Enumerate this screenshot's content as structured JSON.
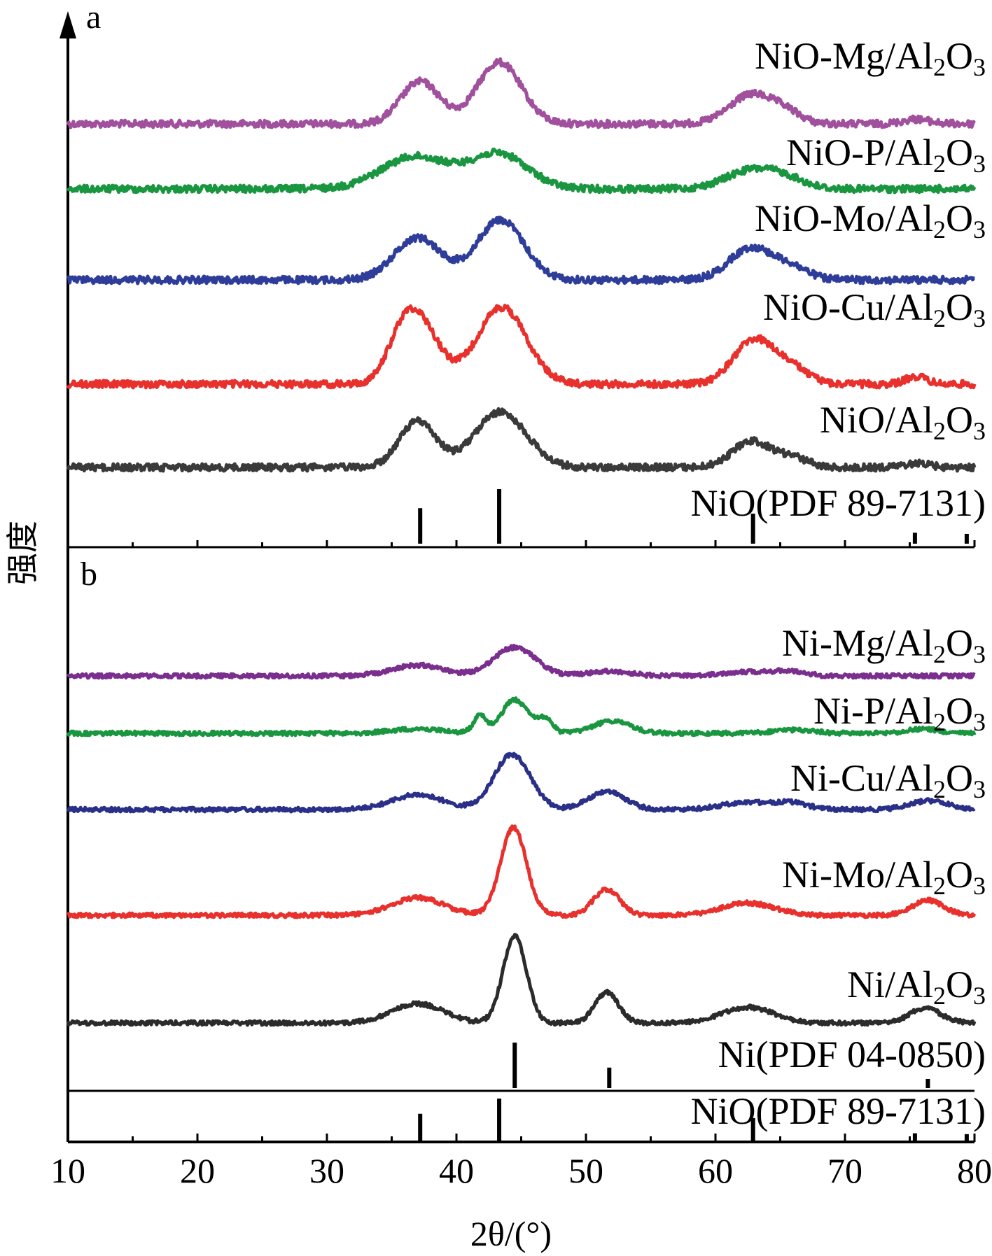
{
  "chart_data": {
    "type": "line",
    "title": "",
    "xlabel": "2θ/(°)",
    "ylabel": "强度",
    "xlim": [
      10,
      80
    ],
    "xticks": [
      10,
      20,
      30,
      40,
      50,
      60,
      70,
      80
    ],
    "grid": false,
    "legend": "labels placed beside each curve (right side)",
    "panels": [
      {
        "id": "a",
        "series": [
          {
            "name": "NiO-Mg/Al2O3",
            "label_main": "NiO-Mg/Al",
            "label_sub1": "2",
            "label_mid": "O",
            "label_sub2": "3",
            "color": "#a0509c",
            "peaks": [
              [
                37.2,
                0.55,
                1.5
              ],
              [
                43.3,
                0.8,
                1.7
              ],
              [
                62.8,
                0.38,
                1.7
              ],
              [
                65.5,
                0.12,
                1.2
              ],
              [
                75.5,
                0.06,
                1.0
              ]
            ]
          },
          {
            "name": "NiO-P/Al2O3",
            "label_main": "NiO-P/Al",
            "label_sub1": "2",
            "label_mid": "O",
            "label_sub2": "3",
            "color": "#1a9640",
            "peaks": [
              [
                36.8,
                0.42,
                2.6
              ],
              [
                43.3,
                0.45,
                2.2
              ],
              [
                62.8,
                0.24,
                2.0
              ],
              [
                65.5,
                0.1,
                1.5
              ]
            ]
          },
          {
            "name": "NiO-Mo/Al2O3",
            "label_main": "NiO-Mo/Al",
            "label_sub1": "2",
            "label_mid": "O",
            "label_sub2": "3",
            "color": "#2f3d9a",
            "peaks": [
              [
                37.0,
                0.55,
                1.8
              ],
              [
                43.4,
                0.78,
                1.8
              ],
              [
                62.8,
                0.42,
                1.7
              ],
              [
                66.0,
                0.14,
                1.3
              ]
            ]
          },
          {
            "name": "NiO-Cu/Al2O3",
            "label_main": "NiO-Cu/Al",
            "label_sub1": "2",
            "label_mid": "O",
            "label_sub2": "3",
            "color": "#e8302c",
            "peaks": [
              [
                35.8,
                0.45,
                1.2
              ],
              [
                37.3,
                0.7,
                1.5
              ],
              [
                43.5,
                1.0,
                1.9
              ],
              [
                63.0,
                0.58,
                1.6
              ],
              [
                66.0,
                0.18,
                1.3
              ],
              [
                75.5,
                0.1,
                0.8
              ]
            ]
          },
          {
            "name": "NiO/Al2O3",
            "label_main": "NiO/Al",
            "label_sub1": "2",
            "label_mid": "O",
            "label_sub2": "3",
            "color": "#3a3a3a",
            "peaks": [
              [
                37.0,
                0.6,
                1.4
              ],
              [
                43.4,
                0.72,
                2.0
              ],
              [
                62.8,
                0.34,
                1.5
              ],
              [
                66.0,
                0.12,
                1.2
              ],
              [
                75.5,
                0.05,
                1.0
              ]
            ]
          }
        ],
        "reference": {
          "name": "NiO(PDF 89-7131)",
          "positions": [
            37.2,
            43.3,
            62.9,
            75.4,
            79.4
          ],
          "relative_intensities": [
            0.65,
            1.0,
            0.55,
            0.2,
            0.18
          ]
        }
      },
      {
        "id": "b",
        "series": [
          {
            "name": "Ni-Mg/Al2O3",
            "label_main": "Ni-Mg/Al",
            "label_sub1": "2",
            "label_mid": "O",
            "label_sub2": "3",
            "color": "#7a2e8e",
            "peaks": [
              [
                37.0,
                0.18,
                2.0
              ],
              [
                44.5,
                0.48,
                1.6
              ],
              [
                51.8,
                0.08,
                1.6
              ],
              [
                62.5,
                0.07,
                2.0
              ],
              [
                65.8,
                0.07,
                1.2
              ]
            ]
          },
          {
            "name": "Ni-P/Al2O3",
            "label_main": "Ni-P/Al",
            "label_sub1": "2",
            "label_mid": "O",
            "label_sub2": "3",
            "color": "#1a9640",
            "peaks": [
              [
                37.0,
                0.08,
                2.0
              ],
              [
                41.8,
                0.3,
                0.5
              ],
              [
                44.5,
                0.6,
                1.0
              ],
              [
                46.8,
                0.25,
                0.6
              ],
              [
                52.0,
                0.22,
                1.4
              ],
              [
                66.0,
                0.06,
                1.5
              ],
              [
                76.0,
                0.08,
                1.2
              ]
            ]
          },
          {
            "name": "Ni-Cu/Al2O3",
            "label_main": "Ni-Cu/Al",
            "label_sub1": "2",
            "label_mid": "O",
            "label_sub2": "3",
            "color": "#2a2f88",
            "peaks": [
              [
                37.0,
                0.2,
                2.0
              ],
              [
                44.3,
                0.75,
                1.4
              ],
              [
                51.6,
                0.25,
                1.4
              ],
              [
                62.5,
                0.1,
                2.0
              ],
              [
                66.0,
                0.08,
                1.2
              ],
              [
                76.5,
                0.12,
                1.5
              ]
            ]
          },
          {
            "name": "Ni-Mo/Al2O3",
            "label_main": "Ni-Mo/Al",
            "label_sub1": "2",
            "label_mid": "O",
            "label_sub2": "3",
            "color": "#e8302c",
            "peaks": [
              [
                37.0,
                0.2,
                2.0
              ],
              [
                44.4,
                1.0,
                1.0
              ],
              [
                51.6,
                0.3,
                1.0
              ],
              [
                62.5,
                0.14,
                2.0
              ],
              [
                76.4,
                0.17,
                1.2
              ]
            ]
          },
          {
            "name": "Ni/Al2O3",
            "label_main": "Ni/Al",
            "label_sub1": "2",
            "label_mid": "O",
            "label_sub2": "3",
            "color": "#2b2b2b",
            "peaks": [
              [
                37.0,
                0.22,
                2.0
              ],
              [
                44.5,
                1.0,
                0.9
              ],
              [
                51.6,
                0.35,
                0.9
              ],
              [
                62.5,
                0.18,
                2.0
              ],
              [
                76.2,
                0.17,
                1.2
              ]
            ]
          }
        ],
        "references": [
          {
            "name": "Ni(PDF 04-0850)",
            "positions": [
              44.5,
              51.8,
              76.4
            ],
            "relative_intensities": [
              1.0,
              0.45,
              0.2
            ]
          },
          {
            "name": "NiO(PDF 89-7131)",
            "positions": [
              37.2,
              43.3,
              62.9,
              75.4,
              79.4
            ],
            "relative_intensities": [
              0.65,
              1.0,
              0.55,
              0.2,
              0.18
            ]
          }
        ]
      }
    ]
  }
}
